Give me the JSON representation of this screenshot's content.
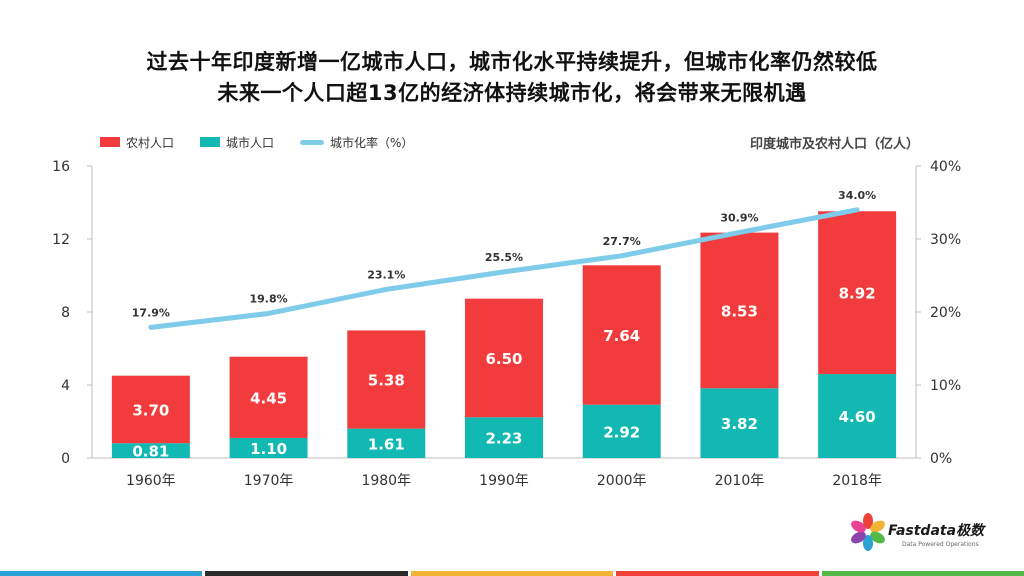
{
  "slide": {
    "title_line1": "过去十年印度新增一亿城市人口，城市化水平持续提升，但城市化率仍然较低",
    "title_line2": "未来一个人口超13亿的经济体持续城市化，将会带来无限机遇",
    "unit_label": "印度城市及农村人口（亿人）"
  },
  "colors": {
    "rural": "#f23b3d",
    "urban": "#12b8b2",
    "rate": "#7ecbea",
    "footer": [
      "#2aa3d4",
      "#2b2b2b",
      "#f2b233",
      "#ef4137",
      "#54b948"
    ]
  },
  "logo": {
    "name": "Fastdata极数",
    "tagline": "Data Powered Operations"
  },
  "chart_data": {
    "type": "bar",
    "stacked": true,
    "categories": [
      "1960年",
      "1970年",
      "1980年",
      "1990年",
      "2000年",
      "2010年",
      "2018年"
    ],
    "series": [
      {
        "name": "城市人口",
        "values": [
          0.81,
          1.1,
          1.61,
          2.23,
          2.92,
          3.82,
          4.6
        ],
        "labels": [
          "0.81",
          "1.10",
          "1.61",
          "2.23",
          "2.92",
          "3.82",
          "4.60"
        ]
      },
      {
        "name": "农村人口",
        "values": [
          3.7,
          4.45,
          5.38,
          6.5,
          7.64,
          8.53,
          8.92
        ],
        "labels": [
          "3.70",
          "4.45",
          "5.38",
          "6.50",
          "7.64",
          "8.53",
          "8.92"
        ]
      }
    ],
    "line_series": {
      "name": "城市化率（%）",
      "values": [
        17.9,
        19.8,
        23.1,
        25.5,
        27.7,
        30.9,
        34.0
      ],
      "labels": [
        "17.9%",
        "19.8%",
        "23.1%",
        "25.5%",
        "27.7%",
        "30.9%",
        "34.0%"
      ]
    },
    "y_left": {
      "min": 0,
      "max": 16,
      "ticks": [
        "0",
        "4",
        "8",
        "12",
        "16"
      ]
    },
    "y_right": {
      "min": 0,
      "max": 40,
      "ticks": [
        "0%",
        "10%",
        "20%",
        "30%",
        "40%"
      ]
    },
    "legend": [
      "农村人口",
      "城市人口",
      "城市化率（%）"
    ],
    "legend_position": "top-left",
    "grid": false
  }
}
